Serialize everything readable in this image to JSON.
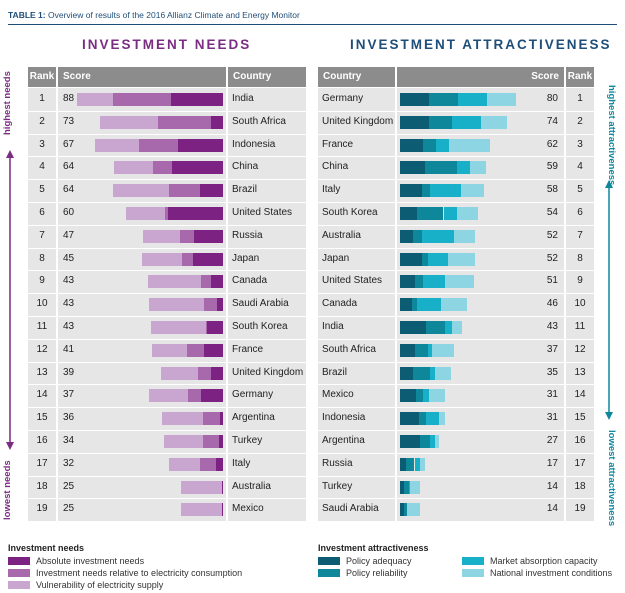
{
  "caption": {
    "label": "TABLE 1:",
    "text": "Overview of results of the 2016 Allianz Climate and Energy Monitor"
  },
  "colors": {
    "needs_title": "#7b2c83",
    "attr_title": "#1f4e79",
    "abs": "#7b2283",
    "rel": "#a868ac",
    "vul": "#c9a6d0",
    "adeq": "#0c5c73",
    "rel2": "#0f879b",
    "abs2": "#17b0c8",
    "nat": "#8dd5e3"
  },
  "left": {
    "title": "INVESTMENT NEEDS",
    "headers": {
      "rank": "Rank",
      "score": "Score",
      "country": "Country"
    },
    "side_top": "highest needs",
    "side_bottom": "lowest needs"
  },
  "right": {
    "title": "INVESTMENT ATTRACTIVENESS",
    "headers": {
      "country": "Country",
      "score": "Score",
      "rank": "Rank"
    },
    "side_top": "highest attractiveness",
    "side_bottom": "lowest attractiveness"
  },
  "legend": {
    "needs_title": "Investment needs",
    "needs_items": [
      "Absolute investment needs",
      "Investment needs relative to electricity consumption",
      "Vulnerability of electricity supply"
    ],
    "attr_title": "Investment attractiveness",
    "attr_items": [
      "Policy adequacy",
      "Policy reliability",
      "Market absorption capacity",
      "National investment conditions"
    ]
  },
  "chart_data": [
    {
      "type": "bar",
      "title": "INVESTMENT NEEDS",
      "orientation": "horizontal-stacked",
      "series_names": [
        "Absolute investment needs",
        "Investment needs relative to electricity consumption",
        "Vulnerability of electricity supply"
      ],
      "rows": [
        {
          "rank": "1",
          "score": "88",
          "country": "India",
          "parts": [
            36,
            40,
            25
          ]
        },
        {
          "rank": "2",
          "score": "73",
          "country": "South Africa",
          "parts": [
            8,
            37,
            40
          ]
        },
        {
          "rank": "3",
          "score": "67",
          "country": "Indonesia",
          "parts": [
            31,
            27,
            30
          ]
        },
        {
          "rank": "4",
          "score": "64",
          "country": "China",
          "parts": [
            35,
            13,
            27
          ]
        },
        {
          "rank": "5",
          "score": "64",
          "country": "Brazil",
          "parts": [
            16,
            21,
            39
          ]
        },
        {
          "rank": "6",
          "score": "60",
          "country": "United States",
          "parts": [
            38,
            2,
            27
          ]
        },
        {
          "rank": "7",
          "score": "47",
          "country": "Russia",
          "parts": [
            20,
            10,
            25
          ]
        },
        {
          "rank": "8",
          "score": "45",
          "country": "Japan",
          "parts": [
            21,
            7,
            28
          ]
        },
        {
          "rank": "9",
          "score": "43",
          "country": "Canada",
          "parts": [
            8,
            7,
            37
          ]
        },
        {
          "rank": "10",
          "score": "43",
          "country": "Saudi Arabia",
          "parts": [
            4,
            9,
            38
          ]
        },
        {
          "rank": "11",
          "score": "43",
          "country": "South Korea",
          "parts": [
            11,
            1,
            38
          ]
        },
        {
          "rank": "12",
          "score": "41",
          "country": "France",
          "parts": [
            13,
            12,
            24
          ]
        },
        {
          "rank": "13",
          "score": "39",
          "country": "United Kingdom",
          "parts": [
            8,
            9,
            26
          ]
        },
        {
          "rank": "14",
          "score": "37",
          "country": "Germany",
          "parts": [
            15,
            9,
            27
          ]
        },
        {
          "rank": "15",
          "score": "36",
          "country": "Argentina",
          "parts": [
            2,
            12,
            28
          ]
        },
        {
          "rank": "16",
          "score": "34",
          "country": "Turkey",
          "parts": [
            3,
            11,
            27
          ]
        },
        {
          "rank": "17",
          "score": "32",
          "country": "Italy",
          "parts": [
            5,
            11,
            21
          ]
        },
        {
          "rank": "18",
          "score": "25",
          "country": "Australia",
          "parts": [
            1,
            0,
            28
          ]
        },
        {
          "rank": "19",
          "score": "25",
          "country": "Mexico",
          "parts": [
            1,
            0,
            28
          ]
        }
      ]
    },
    {
      "type": "bar",
      "title": "INVESTMENT ATTRACTIVENESS",
      "orientation": "horizontal-stacked",
      "series_names": [
        "Policy adequacy",
        "Policy reliability",
        "Market absorption capacity",
        "National investment conditions"
      ],
      "rows": [
        {
          "rank": "1",
          "score": "80",
          "country": "Germany",
          "parts": [
            20,
            20,
            20,
            20
          ]
        },
        {
          "rank": "2",
          "score": "74",
          "country": "United Kingdom",
          "parts": [
            20,
            16,
            20,
            18
          ]
        },
        {
          "rank": "3",
          "score": "62",
          "country": "France",
          "parts": [
            16,
            9,
            9,
            28
          ]
        },
        {
          "rank": "4",
          "score": "59",
          "country": "China",
          "parts": [
            17,
            22,
            9,
            11
          ]
        },
        {
          "rank": "5",
          "score": "58",
          "country": "Italy",
          "parts": [
            15,
            6,
            21,
            16
          ]
        },
        {
          "rank": "6",
          "score": "54",
          "country": "South Korea",
          "parts": [
            12,
            18,
            9,
            15
          ]
        },
        {
          "rank": "7",
          "score": "52",
          "country": "Australia",
          "parts": [
            9,
            6,
            22,
            15
          ]
        },
        {
          "rank": "8",
          "score": "52",
          "country": "Japan",
          "parts": [
            15,
            4,
            14,
            19
          ]
        },
        {
          "rank": "9",
          "score": "51",
          "country": "United States",
          "parts": [
            10,
            6,
            15,
            20
          ]
        },
        {
          "rank": "10",
          "score": "46",
          "country": "Canada",
          "parts": [
            8,
            4,
            16,
            18
          ]
        },
        {
          "rank": "11",
          "score": "43",
          "country": "India",
          "parts": [
            18,
            13,
            5,
            7
          ]
        },
        {
          "rank": "12",
          "score": "37",
          "country": "South Africa",
          "parts": [
            10,
            9,
            3,
            15
          ]
        },
        {
          "rank": "13",
          "score": "35",
          "country": "Brazil",
          "parts": [
            9,
            12,
            3,
            11
          ]
        },
        {
          "rank": "14",
          "score": "31",
          "country": "Mexico",
          "parts": [
            11,
            5,
            4,
            11
          ]
        },
        {
          "rank": "15",
          "score": "31",
          "country": "Indonesia",
          "parts": [
            13,
            5,
            9,
            4
          ]
        },
        {
          "rank": "16",
          "score": "27",
          "country": "Argentina",
          "parts": [
            14,
            7,
            3,
            3
          ]
        },
        {
          "rank": "17",
          "score": "17",
          "country": "Russia",
          "parts": [
            4,
            6,
            4,
            3
          ]
        },
        {
          "rank": "18",
          "score": "14",
          "country": "Turkey",
          "parts": [
            3,
            3,
            1,
            7
          ]
        },
        {
          "rank": "19",
          "score": "14",
          "country": "Saudi Arabia",
          "parts": [
            3,
            2,
            0,
            9
          ]
        }
      ]
    }
  ]
}
